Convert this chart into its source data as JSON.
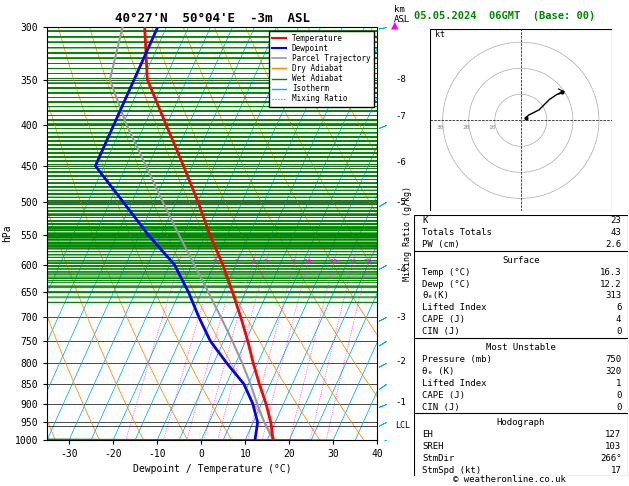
{
  "title": "40°27'N  50°04'E  -3m  ASL",
  "date_str": "05.05.2024  06GMT  (Base: 00)",
  "copyright": "© weatheronline.co.uk",
  "xlabel": "Dewpoint / Temperature (°C)",
  "temp_color": "#ff0000",
  "dewp_color": "#0000ff",
  "parcel_color": "#999999",
  "dry_adiabat_color": "#ff8800",
  "wet_adiabat_color": "#008800",
  "isotherm_color": "#00aaff",
  "mixing_ratio_color": "#ff00ff",
  "pressure_levels": [
    300,
    350,
    400,
    450,
    500,
    550,
    600,
    650,
    700,
    750,
    800,
    850,
    900,
    950,
    1000
  ],
  "p_min": 300,
  "p_max": 1000,
  "t_min": -35,
  "t_max": 40,
  "skew_factor": 35.0,
  "temp_profile": {
    "p": [
      1000,
      950,
      900,
      850,
      800,
      750,
      700,
      650,
      600,
      550,
      500,
      450,
      400,
      350,
      300
    ],
    "T": [
      16.3,
      14.0,
      11.0,
      7.5,
      4.0,
      0.5,
      -3.5,
      -8.0,
      -13.0,
      -19.0,
      -25.0,
      -32.0,
      -40.0,
      -49.0,
      -55.0
    ]
  },
  "dewp_profile": {
    "p": [
      1000,
      950,
      900,
      850,
      800,
      750,
      700,
      650,
      600,
      550,
      500,
      450,
      400,
      350,
      300
    ],
    "T": [
      12.2,
      11.0,
      8.0,
      4.0,
      -2.0,
      -8.0,
      -13.0,
      -18.0,
      -24.0,
      -33.0,
      -42.0,
      -52.0,
      -52.0,
      -52.0,
      -52.0
    ]
  },
  "parcel_profile": {
    "p": [
      1000,
      950,
      900,
      850,
      800,
      750,
      700,
      650,
      600,
      550,
      500,
      450,
      400,
      350,
      300
    ],
    "T": [
      16.3,
      12.5,
      9.0,
      5.5,
      1.5,
      -3.0,
      -8.0,
      -13.5,
      -19.5,
      -26.0,
      -33.0,
      -40.5,
      -49.0,
      -57.5,
      -60.0
    ]
  },
  "lcl_pressure": 960,
  "mixing_ratio_lines": [
    1,
    2,
    3,
    4,
    5,
    8,
    10,
    15,
    20,
    25
  ],
  "dry_adiabat_thetas": [
    220,
    230,
    240,
    250,
    260,
    270,
    280,
    290,
    300,
    310,
    320,
    330,
    340,
    350,
    360,
    380,
    400,
    420
  ],
  "moist_adiabat_temps": [
    -30,
    -25,
    -20,
    -15,
    -10,
    -5,
    0,
    5,
    10,
    15,
    20,
    25,
    30
  ],
  "km_labels": {
    "km": [
      1,
      2,
      3,
      4,
      5,
      6,
      7,
      8
    ],
    "p": [
      898,
      795,
      700,
      608,
      500,
      445,
      390,
      350
    ]
  },
  "wind_barb_levels": [
    {
      "p": 300,
      "u": 25,
      "v": 5,
      "color": "#00aaff"
    },
    {
      "p": 400,
      "u": 20,
      "v": 8,
      "color": "#00aaff"
    },
    {
      "p": 500,
      "u": 18,
      "v": 10,
      "color": "#00aaff"
    },
    {
      "p": 600,
      "u": 15,
      "v": 8,
      "color": "#00aaff"
    },
    {
      "p": 700,
      "u": 12,
      "v": 6,
      "color": "#00aaff"
    },
    {
      "p": 750,
      "u": 10,
      "v": 6,
      "color": "#00aaff"
    },
    {
      "p": 800,
      "u": 8,
      "v": 4,
      "color": "#00aaff"
    },
    {
      "p": 850,
      "u": 6,
      "v": 4,
      "color": "#00aaff"
    },
    {
      "p": 900,
      "u": 5,
      "v": 2,
      "color": "#00aaff"
    },
    {
      "p": 950,
      "u": 4,
      "v": 2,
      "color": "#00cccc"
    },
    {
      "p": 1000,
      "u": 3,
      "v": 1,
      "color": "#00cccc"
    }
  ],
  "stats_K": "23",
  "stats_TT": "43",
  "stats_PW": "2.6",
  "surf_temp": "16.3",
  "surf_dewp": "12.2",
  "surf_theta_e": "313",
  "surf_li": "6",
  "surf_cape": "4",
  "surf_cin": "0",
  "mu_pres": "750",
  "mu_theta_e": "320",
  "mu_li": "1",
  "mu_cape": "0",
  "mu_cin": "0",
  "hodo_eh": "127",
  "hodo_sreh": "103",
  "hodo_stmdir": "266°",
  "hodo_stmspd": "17"
}
